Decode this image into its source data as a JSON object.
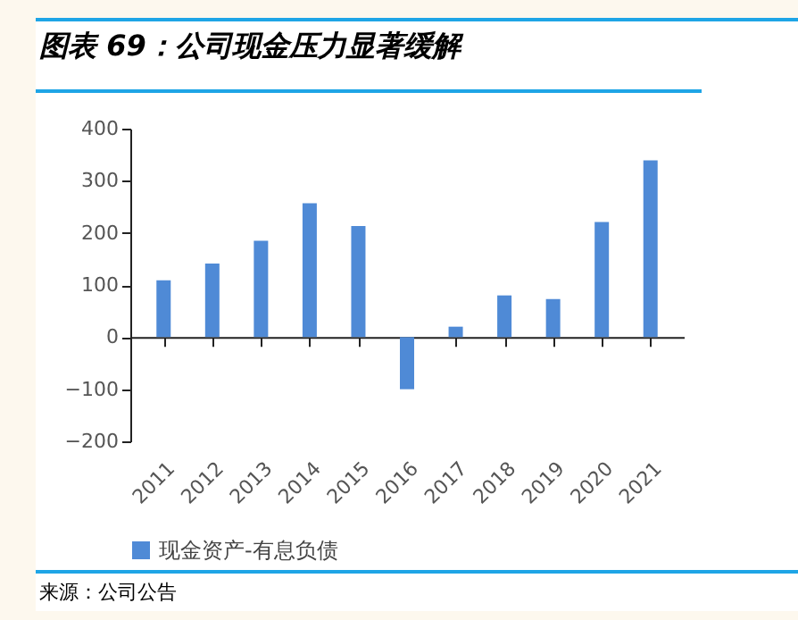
{
  "chart_data": {
    "type": "bar",
    "title": "图表 69：公司现金压力显著缓解",
    "annotations": [
      "来源：公司公告"
    ],
    "categories": [
      "2011",
      "2012",
      "2013",
      "2014",
      "2015",
      "2016",
      "2017",
      "2018",
      "2019",
      "2020",
      "2021"
    ],
    "series": [
      {
        "name": "现金资产-有息负债",
        "color": "#4f8ad6",
        "values": [
          109,
          141,
          185,
          257,
          213,
          -100,
          20,
          80,
          73,
          221,
          339
        ]
      }
    ],
    "ylim": [
      -200,
      400
    ],
    "yticks": [
      -200,
      -100,
      0,
      100,
      200,
      300,
      400
    ],
    "legend": "bottom"
  }
}
